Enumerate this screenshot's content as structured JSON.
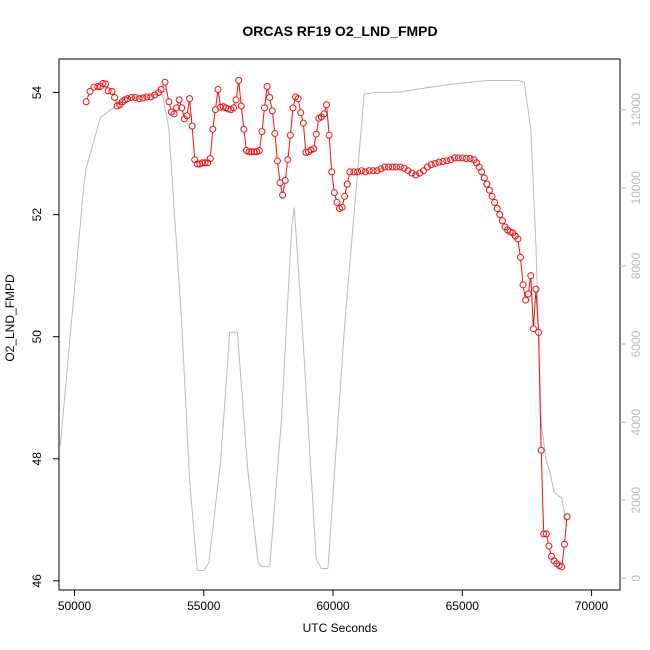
{
  "chart_data": {
    "type": "line",
    "title": "ORCAS RF19 O2_LND_FMPD",
    "xlabel": "UTC Seconds",
    "ylabel": "O2_LND_FMPD",
    "xlim": [
      49400,
      71100
    ],
    "ylim": [
      45.85,
      54.55
    ],
    "y2lim": [
      -300,
      13300
    ],
    "x_ticks": [
      50000,
      55000,
      60000,
      65000,
      70000
    ],
    "y_ticks": [
      46,
      48,
      50,
      52,
      54
    ],
    "y2_ticks": [
      0,
      2000,
      4000,
      6000,
      8000,
      10000,
      12000
    ],
    "series": [
      {
        "role": "primary",
        "color": "#ee1111",
        "style": "points-lines",
        "points": [
          [
            50450,
            53.85
          ],
          [
            50600,
            54.02
          ],
          [
            50750,
            54.09
          ],
          [
            50900,
            54.1
          ],
          [
            51000,
            54.1
          ],
          [
            51100,
            54.15
          ],
          [
            51200,
            54.14
          ],
          [
            51300,
            54.03
          ],
          [
            51450,
            54.02
          ],
          [
            51550,
            53.92
          ],
          [
            51650,
            53.78
          ],
          [
            51750,
            53.8
          ],
          [
            51850,
            53.85
          ],
          [
            51950,
            53.88
          ],
          [
            52050,
            53.9
          ],
          [
            52200,
            53.92
          ],
          [
            52350,
            53.92
          ],
          [
            52500,
            53.9
          ],
          [
            52650,
            53.91
          ],
          [
            52800,
            53.93
          ],
          [
            52950,
            53.93
          ],
          [
            53100,
            53.96
          ],
          [
            53250,
            54.0
          ],
          [
            53350,
            54.05
          ],
          [
            53500,
            54.17
          ],
          [
            53650,
            53.85
          ],
          [
            53750,
            53.68
          ],
          [
            53850,
            53.65
          ],
          [
            53950,
            53.75
          ],
          [
            54050,
            53.88
          ],
          [
            54150,
            53.75
          ],
          [
            54250,
            53.57
          ],
          [
            54350,
            53.62
          ],
          [
            54450,
            53.9
          ],
          [
            54550,
            53.45
          ],
          [
            54650,
            52.9
          ],
          [
            54750,
            52.83
          ],
          [
            54850,
            52.83
          ],
          [
            54950,
            52.85
          ],
          [
            55050,
            52.85
          ],
          [
            55150,
            52.85
          ],
          [
            55250,
            52.92
          ],
          [
            55350,
            53.4
          ],
          [
            55450,
            53.72
          ],
          [
            55550,
            54.05
          ],
          [
            55650,
            53.76
          ],
          [
            55750,
            53.77
          ],
          [
            55850,
            53.75
          ],
          [
            55950,
            53.73
          ],
          [
            56050,
            53.72
          ],
          [
            56150,
            53.75
          ],
          [
            56250,
            53.88
          ],
          [
            56350,
            54.2
          ],
          [
            56450,
            53.78
          ],
          [
            56550,
            53.4
          ],
          [
            56650,
            53.05
          ],
          [
            56750,
            53.03
          ],
          [
            56850,
            53.03
          ],
          [
            56950,
            53.03
          ],
          [
            57050,
            53.03
          ],
          [
            57150,
            53.05
          ],
          [
            57250,
            53.36
          ],
          [
            57350,
            53.75
          ],
          [
            57450,
            54.1
          ],
          [
            57550,
            53.92
          ],
          [
            57650,
            53.7
          ],
          [
            57750,
            53.33
          ],
          [
            57850,
            52.88
          ],
          [
            57950,
            52.52
          ],
          [
            58050,
            52.32
          ],
          [
            58150,
            52.56
          ],
          [
            58250,
            52.9
          ],
          [
            58350,
            53.3
          ],
          [
            58450,
            53.75
          ],
          [
            58550,
            53.93
          ],
          [
            58650,
            53.9
          ],
          [
            58750,
            53.67
          ],
          [
            58850,
            53.5
          ],
          [
            58950,
            53.02
          ],
          [
            59050,
            53.03
          ],
          [
            59150,
            53.06
          ],
          [
            59250,
            53.08
          ],
          [
            59350,
            53.32
          ],
          [
            59450,
            53.58
          ],
          [
            59550,
            53.6
          ],
          [
            59650,
            53.65
          ],
          [
            59750,
            53.8
          ],
          [
            59850,
            53.3
          ],
          [
            59950,
            52.7
          ],
          [
            60050,
            52.36
          ],
          [
            60150,
            52.2
          ],
          [
            60250,
            52.1
          ],
          [
            60350,
            52.12
          ],
          [
            60450,
            52.3
          ],
          [
            60550,
            52.5
          ],
          [
            60650,
            52.7
          ],
          [
            60800,
            52.7
          ],
          [
            60950,
            52.7
          ],
          [
            61100,
            52.72
          ],
          [
            61250,
            52.7
          ],
          [
            61400,
            52.72
          ],
          [
            61550,
            52.72
          ],
          [
            61700,
            52.72
          ],
          [
            61850,
            52.75
          ],
          [
            62000,
            52.78
          ],
          [
            62150,
            52.78
          ],
          [
            62300,
            52.78
          ],
          [
            62450,
            52.78
          ],
          [
            62600,
            52.78
          ],
          [
            62750,
            52.76
          ],
          [
            62900,
            52.72
          ],
          [
            63050,
            52.68
          ],
          [
            63200,
            52.65
          ],
          [
            63350,
            52.68
          ],
          [
            63500,
            52.72
          ],
          [
            63650,
            52.78
          ],
          [
            63800,
            52.82
          ],
          [
            63950,
            52.84
          ],
          [
            64100,
            52.86
          ],
          [
            64250,
            52.87
          ],
          [
            64400,
            52.88
          ],
          [
            64550,
            52.9
          ],
          [
            64700,
            52.93
          ],
          [
            64850,
            52.93
          ],
          [
            65000,
            52.93
          ],
          [
            65150,
            52.92
          ],
          [
            65300,
            52.92
          ],
          [
            65450,
            52.9
          ],
          [
            65550,
            52.85
          ],
          [
            65650,
            52.78
          ],
          [
            65750,
            52.7
          ],
          [
            65850,
            52.6
          ],
          [
            65950,
            52.5
          ],
          [
            66050,
            52.4
          ],
          [
            66150,
            52.3
          ],
          [
            66250,
            52.2
          ],
          [
            66350,
            52.1
          ],
          [
            66450,
            52.0
          ],
          [
            66550,
            51.9
          ],
          [
            66650,
            51.8
          ],
          [
            66750,
            51.75
          ],
          [
            66850,
            51.72
          ],
          [
            66950,
            51.7
          ],
          [
            67050,
            51.65
          ],
          [
            67150,
            51.6
          ],
          [
            67250,
            51.3
          ],
          [
            67350,
            50.85
          ],
          [
            67450,
            50.6
          ],
          [
            67550,
            50.7
          ],
          [
            67650,
            51.0
          ],
          [
            67750,
            50.13
          ],
          [
            67850,
            50.78
          ],
          [
            67950,
            50.07
          ],
          [
            68050,
            48.14
          ],
          [
            68150,
            46.77
          ],
          [
            68250,
            46.77
          ],
          [
            68350,
            46.57
          ],
          [
            68450,
            46.4
          ],
          [
            68550,
            46.33
          ],
          [
            68650,
            46.28
          ],
          [
            68750,
            46.25
          ],
          [
            68850,
            46.23
          ],
          [
            68950,
            46.6
          ],
          [
            69050,
            47.05
          ]
        ]
      },
      {
        "role": "secondary-axis",
        "color": "#bbbbbb",
        "style": "line",
        "points": [
          [
            49450,
            3400
          ],
          [
            50350,
            10000
          ],
          [
            50450,
            10500
          ],
          [
            51000,
            11800
          ],
          [
            52000,
            12300
          ],
          [
            53400,
            12400
          ],
          [
            53650,
            11500
          ],
          [
            54150,
            6500
          ],
          [
            54450,
            2500
          ],
          [
            54750,
            200
          ],
          [
            55000,
            200
          ],
          [
            55200,
            400
          ],
          [
            55650,
            3000
          ],
          [
            55900,
            5300
          ],
          [
            56000,
            6300
          ],
          [
            56300,
            6300
          ],
          [
            56700,
            2800
          ],
          [
            57100,
            400
          ],
          [
            57250,
            300
          ],
          [
            57550,
            300
          ],
          [
            58000,
            4000
          ],
          [
            58400,
            9000
          ],
          [
            58500,
            9500
          ],
          [
            58850,
            6000
          ],
          [
            59350,
            500
          ],
          [
            59550,
            250
          ],
          [
            59800,
            250
          ],
          [
            60450,
            6500
          ],
          [
            61000,
            10800
          ],
          [
            61200,
            12400
          ],
          [
            61700,
            12450
          ],
          [
            62500,
            12450
          ],
          [
            63500,
            12550
          ],
          [
            64500,
            12650
          ],
          [
            66000,
            12750
          ],
          [
            67200,
            12750
          ],
          [
            67400,
            12700
          ],
          [
            67650,
            11500
          ],
          [
            67850,
            8500
          ],
          [
            68050,
            4000
          ],
          [
            68250,
            3000
          ],
          [
            68400,
            2700
          ],
          [
            68550,
            2200
          ],
          [
            68750,
            2100
          ],
          [
            68850,
            2050
          ],
          [
            69050,
            1350
          ]
        ]
      }
    ]
  }
}
